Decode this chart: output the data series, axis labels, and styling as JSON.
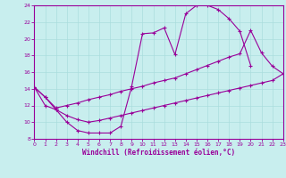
{
  "xlabel": "Windchill (Refroidissement éolien,°C)",
  "bg_color": "#c8eeee",
  "grid_color": "#aadddd",
  "line_color": "#990099",
  "spine_color": "#7700aa",
  "xlim": [
    0,
    23
  ],
  "ylim": [
    8,
    24
  ],
  "xticks": [
    0,
    1,
    2,
    3,
    4,
    5,
    6,
    7,
    8,
    9,
    10,
    11,
    12,
    13,
    14,
    15,
    16,
    17,
    18,
    19,
    20,
    21,
    22,
    23
  ],
  "yticks": [
    8,
    10,
    12,
    14,
    16,
    18,
    20,
    22,
    24
  ],
  "curve1_x": [
    0,
    1,
    2,
    3,
    4,
    5,
    6,
    7,
    8,
    9,
    10,
    11,
    12,
    13,
    14,
    15,
    16,
    17,
    18,
    19,
    20
  ],
  "curve1_y": [
    14.2,
    13.0,
    11.5,
    10.0,
    9.0,
    8.7,
    8.7,
    8.7,
    9.5,
    14.3,
    20.6,
    20.7,
    21.3,
    18.1,
    23.0,
    24.0,
    24.0,
    23.5,
    22.4,
    20.9,
    16.8
  ],
  "curve2_x": [
    0,
    1,
    2,
    3,
    4,
    5,
    6,
    7,
    8,
    9,
    10,
    11,
    12,
    13,
    14,
    15,
    16,
    17,
    18,
    19,
    20,
    21,
    22,
    23
  ],
  "curve2_y": [
    14.2,
    13.0,
    11.7,
    12.0,
    12.3,
    12.7,
    13.0,
    13.3,
    13.7,
    14.0,
    14.3,
    14.7,
    15.0,
    15.3,
    15.8,
    16.3,
    16.8,
    17.3,
    17.8,
    18.2,
    21.0,
    18.3,
    16.7,
    15.8
  ],
  "curve3_x": [
    0,
    1,
    2,
    3,
    4,
    5,
    6,
    7,
    8,
    9,
    10,
    11,
    12,
    13,
    14,
    15,
    16,
    17,
    18,
    19,
    20,
    21,
    22,
    23
  ],
  "curve3_y": [
    14.2,
    12.0,
    11.5,
    10.8,
    10.3,
    10.0,
    10.2,
    10.5,
    10.8,
    11.1,
    11.4,
    11.7,
    12.0,
    12.3,
    12.6,
    12.9,
    13.2,
    13.5,
    13.8,
    14.1,
    14.4,
    14.7,
    15.0,
    15.8
  ]
}
